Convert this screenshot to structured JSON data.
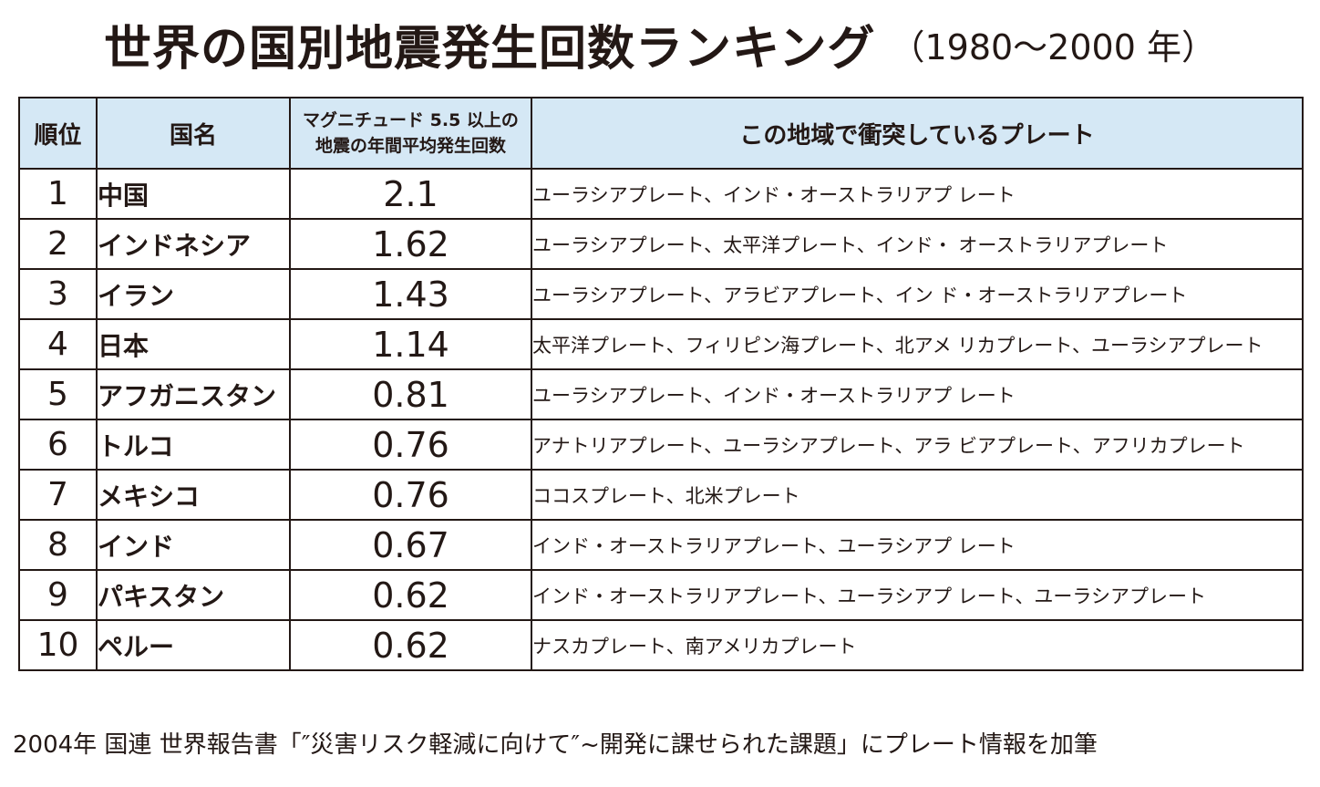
{
  "title": "世界の国別地震発生回数ランキング",
  "subtitle": "（1980〜2000 年）",
  "colors": {
    "header_bg": "#d5e8f5",
    "border": "#231815",
    "text": "#231815"
  },
  "headers": {
    "rank": "順位",
    "country": "国名",
    "freq_line1": "マグニチュード 5.5 以上の",
    "freq_line2": "地震の年間平均発生回数",
    "plates": "この地域で衝突しているプレート"
  },
  "chart_data": {
    "type": "table",
    "title": "世界の国別地震発生回数ランキング",
    "subtitle": "（1980〜2000 年）",
    "columns": [
      "順位",
      "国名",
      "マグニチュード 5.5 以上の地震の年間平均発生回数",
      "この地域で衝突しているプレート"
    ],
    "rows": [
      {
        "rank": "1",
        "country": "中国",
        "value": "2.1",
        "plates": "ユーラシアプレート、インド・オーストラリアプ レート"
      },
      {
        "rank": "2",
        "country": "インドネシア",
        "value": "1.62",
        "plates": "ユーラシアプレート、太平洋プレート、インド・ オーストラリアプレート"
      },
      {
        "rank": "3",
        "country": "イラン",
        "value": "1.43",
        "plates": "ユーラシアプレート、アラビアプレート、イン ド・オーストラリアプレート"
      },
      {
        "rank": "4",
        "country": "日本",
        "value": "1.14",
        "plates": "太平洋プレート、フィリピン海プレート、北アメ リカプレート、ユーラシアプレート"
      },
      {
        "rank": "5",
        "country": "アフガニスタン",
        "value": "0.81",
        "plates": "ユーラシアプレート、インド・オーストラリアプ レート"
      },
      {
        "rank": "6",
        "country": "トルコ",
        "value": "0.76",
        "plates": "アナトリアプレート、ユーラシアプレート、アラ ビアプレート、アフリカプレート"
      },
      {
        "rank": "7",
        "country": "メキシコ",
        "value": "0.76",
        "plates": "ココスプレート、北米プレート"
      },
      {
        "rank": "8",
        "country": "インド",
        "value": "0.67",
        "plates": "インド・オーストラリアプレート、ユーラシアプ レート"
      },
      {
        "rank": "9",
        "country": "パキスタン",
        "value": "0.62",
        "plates": "インド・オーストラリアプレート、ユーラシアプ レート、ユーラシアプレート"
      },
      {
        "rank": "10",
        "country": "ペルー",
        "value": "0.62",
        "plates": "ナスカプレート、南アメリカプレート"
      }
    ]
  },
  "footnote": "2004年 国連 世界報告書「″災害リスク軽減に向けて″~開発に課せられた課題」にプレート情報を加筆"
}
